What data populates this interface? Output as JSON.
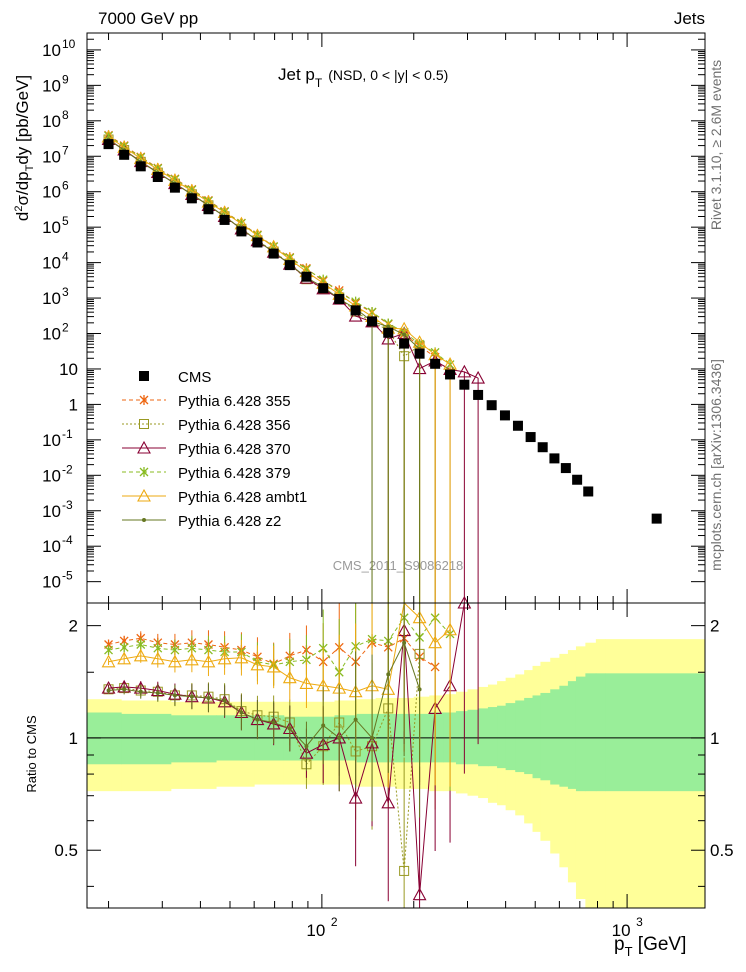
{
  "header": {
    "left": "7000 GeV pp",
    "right": "Jets"
  },
  "side_labels": {
    "top": "Rivet 3.1.10, ≥ 2.6M events",
    "bottom": "mcplots.cern.ch [arXiv:1306.3436]"
  },
  "watermark": "CMS_2011_S9086218",
  "chart_data": {
    "type": "line",
    "title": "Jet p_T (NSD, 0 < |y| < 0.5)",
    "title_main": "Jet p",
    "title_sub": "T",
    "title_rest": "(NSD,   0 < |y| < 0.5)",
    "xlabel": "p_T [GeV]",
    "xlabel_main": "p",
    "xlabel_sub": "T",
    "xlabel_rest": " [GeV]",
    "ylabel": "d²σ/dp_T dy [pb/GeV]",
    "ratio_ylabel": "Ratio to CMS",
    "xscale": "log",
    "yscale": "log",
    "xlim": [
      17,
      1800
    ],
    "ylim": [
      2.5e-06,
      30000000000.0
    ],
    "ratio_ylim": [
      0.35,
      2.3
    ],
    "x_tick_labels": [
      "10",
      "2",
      "10",
      "3"
    ],
    "y_tick_labels": [
      "10^10",
      "10^9",
      "10^8",
      "10^7",
      "10^6",
      "10^5",
      "10^4",
      "10^3",
      "10^2",
      "10",
      "1",
      "10^-1",
      "10^-2",
      "10^-3",
      "10^-4",
      "10^-5"
    ],
    "ratio_tick_labels": [
      "2",
      "1",
      "0.5"
    ],
    "legend_position": "middle-left",
    "cms": {
      "name": "CMS",
      "x": [
        20,
        22.5,
        25.5,
        29,
        33,
        37.5,
        42.5,
        48,
        54.5,
        61.5,
        69.5,
        78.5,
        89,
        101,
        114,
        129,
        146,
        165,
        186,
        209,
        235,
        263,
        293,
        325,
        360,
        398,
        439,
        483,
        529,
        578,
        630,
        686,
        746,
        1250
      ],
      "y": [
        22000000.0,
        11000000.0,
        5200000.0,
        2600000.0,
        1300000.0,
        650000.0,
        320000.0,
        160000.0,
        76000.0,
        37000.0,
        18000.0,
        8500.0,
        4000.0,
        1900.0,
        940,
        450,
        220,
        105,
        52,
        27,
        14,
        7.0,
        3.6,
        1.85,
        0.95,
        0.49,
        0.25,
        0.12,
        0.062,
        0.03,
        0.016,
        0.0075,
        0.0035,
        0.0006
      ]
    },
    "band_edges": [
      17,
      22,
      32,
      45,
      60,
      75,
      90,
      110,
      130,
      150,
      175,
      200,
      225,
      250,
      275,
      300,
      325,
      350,
      375,
      400,
      430,
      460,
      490,
      520,
      560,
      600,
      640,
      680,
      730,
      790,
      850,
      1800
    ],
    "band_inner": [
      [
        0.85,
        1.17
      ],
      [
        0.85,
        1.16
      ],
      [
        0.86,
        1.15
      ],
      [
        0.87,
        1.15
      ],
      [
        0.87,
        1.15
      ],
      [
        0.87,
        1.14
      ],
      [
        0.87,
        1.14
      ],
      [
        0.87,
        1.15
      ],
      [
        0.86,
        1.16
      ],
      [
        0.86,
        1.16
      ],
      [
        0.86,
        1.16
      ],
      [
        0.86,
        1.16
      ],
      [
        0.86,
        1.17
      ],
      [
        0.86,
        1.17
      ],
      [
        0.85,
        1.18
      ],
      [
        0.85,
        1.19
      ],
      [
        0.84,
        1.2
      ],
      [
        0.84,
        1.21
      ],
      [
        0.83,
        1.22
      ],
      [
        0.82,
        1.24
      ],
      [
        0.81,
        1.26
      ],
      [
        0.8,
        1.28
      ],
      [
        0.78,
        1.3
      ],
      [
        0.77,
        1.32
      ],
      [
        0.75,
        1.35
      ],
      [
        0.74,
        1.38
      ],
      [
        0.73,
        1.42
      ],
      [
        0.72,
        1.46
      ],
      [
        0.72,
        1.49
      ],
      [
        0.72,
        1.49
      ],
      [
        0.72,
        1.49
      ]
    ],
    "band_outer": [
      [
        0.72,
        1.27
      ],
      [
        0.72,
        1.26
      ],
      [
        0.73,
        1.25
      ],
      [
        0.74,
        1.25
      ],
      [
        0.75,
        1.25
      ],
      [
        0.75,
        1.25
      ],
      [
        0.75,
        1.25
      ],
      [
        0.75,
        1.26
      ],
      [
        0.74,
        1.27
      ],
      [
        0.74,
        1.28
      ],
      [
        0.73,
        1.28
      ],
      [
        0.73,
        1.29
      ],
      [
        0.72,
        1.3
      ],
      [
        0.72,
        1.31
      ],
      [
        0.71,
        1.33
      ],
      [
        0.7,
        1.35
      ],
      [
        0.69,
        1.37
      ],
      [
        0.67,
        1.39
      ],
      [
        0.66,
        1.42
      ],
      [
        0.64,
        1.45
      ],
      [
        0.62,
        1.48
      ],
      [
        0.59,
        1.52
      ],
      [
        0.56,
        1.56
      ],
      [
        0.53,
        1.6
      ],
      [
        0.49,
        1.64
      ],
      [
        0.45,
        1.68
      ],
      [
        0.41,
        1.72
      ],
      [
        0.37,
        1.76
      ],
      [
        0.35,
        1.8
      ],
      [
        0.35,
        1.84
      ],
      [
        0.35,
        1.84
      ]
    ],
    "series": [
      {
        "name": "Pythia 6.428 355",
        "color": "#ee6611",
        "marker": "star",
        "dash": "4,3",
        "x": [
          20,
          22.5,
          25.5,
          29,
          33,
          37.5,
          42.5,
          48,
          54.5,
          61.5,
          69.5,
          78.5,
          89,
          101,
          114,
          129,
          146,
          165,
          186,
          209,
          235
        ],
        "ratio": [
          1.78,
          1.82,
          1.85,
          1.8,
          1.78,
          1.8,
          1.78,
          1.75,
          1.72,
          1.65,
          1.58,
          1.66,
          1.72,
          1.6,
          1.75,
          1.6,
          1.8,
          1.75,
          1.85,
          1.65,
          1.55
        ]
      },
      {
        "name": "Pythia 6.428 356",
        "color": "#999922",
        "marker": "square",
        "dash": "2,2",
        "x": [
          20,
          22.5,
          25.5,
          29,
          33,
          37.5,
          42.5,
          48,
          54.5,
          61.5,
          69.5,
          78.5,
          89,
          101,
          114,
          129,
          146,
          165,
          186,
          209
        ],
        "ratio": [
          1.35,
          1.36,
          1.34,
          1.33,
          1.3,
          1.3,
          1.29,
          1.27,
          1.18,
          1.15,
          1.14,
          1.1,
          0.85,
          0.95,
          1.1,
          0.92,
          0.95,
          1.2,
          0.44,
          1.68
        ]
      },
      {
        "name": "Pythia 6.428 370",
        "color": "#880033",
        "marker": "triangle",
        "dash": "",
        "x": [
          20,
          22.5,
          25.5,
          29,
          33,
          37.5,
          42.5,
          48,
          54.5,
          61.5,
          69.5,
          78.5,
          89,
          101,
          114,
          129,
          146,
          165,
          186,
          209,
          235,
          263,
          293,
          325
        ],
        "ratio": [
          1.36,
          1.37,
          1.36,
          1.34,
          1.31,
          1.29,
          1.28,
          1.25,
          1.17,
          1.12,
          1.09,
          1.06,
          0.91,
          0.96,
          1.0,
          0.69,
          0.97,
          0.67,
          1.94,
          0.38,
          1.2,
          1.38,
          2.3,
          3.0
        ]
      },
      {
        "name": "Pythia 6.428 379",
        "color": "#88bb22",
        "marker": "star",
        "dash": "4,3",
        "x": [
          20,
          22.5,
          25.5,
          29,
          33,
          37.5,
          42.5,
          48,
          54.5,
          61.5,
          69.5,
          78.5,
          89,
          101,
          114,
          129,
          146,
          165,
          186,
          209,
          235,
          263
        ],
        "ratio": [
          1.72,
          1.75,
          1.78,
          1.74,
          1.72,
          1.74,
          1.72,
          1.7,
          1.7,
          1.6,
          1.57,
          1.6,
          1.62,
          1.74,
          1.5,
          1.76,
          1.84,
          1.82,
          2.1,
          1.86,
          2.1,
          1.9
        ]
      },
      {
        "name": "Pythia 6.428 ambt1",
        "color": "#eeaa11",
        "marker": "triangle",
        "dash": "",
        "x": [
          20,
          22.5,
          25.5,
          29,
          33,
          37.5,
          42.5,
          48,
          54.5,
          61.5,
          69.5,
          78.5,
          89,
          101,
          114,
          129,
          146,
          165,
          186,
          209,
          235,
          263
        ],
        "ratio": [
          1.6,
          1.63,
          1.66,
          1.63,
          1.6,
          1.62,
          1.6,
          1.63,
          1.64,
          1.57,
          1.55,
          1.45,
          1.4,
          1.38,
          1.36,
          1.33,
          1.38,
          1.35,
          2.6,
          2.1,
          1.8,
          1.95
        ]
      },
      {
        "name": "Pythia 6.428 z2",
        "color": "#667722",
        "marker": "dot",
        "dash": "",
        "x": [
          20,
          22.5,
          25.5,
          29,
          33,
          37.5,
          42.5,
          48,
          54.5,
          61.5,
          69.5,
          78.5,
          89,
          101,
          114,
          129,
          146,
          165,
          186,
          209
        ],
        "ratio": [
          1.34,
          1.35,
          1.33,
          1.32,
          1.3,
          1.29,
          1.28,
          1.26,
          1.17,
          1.12,
          1.1,
          1.06,
          0.95,
          1.08,
          1.0,
          1.12,
          1.0,
          1.48,
          1.8,
          1.35
        ]
      }
    ]
  }
}
